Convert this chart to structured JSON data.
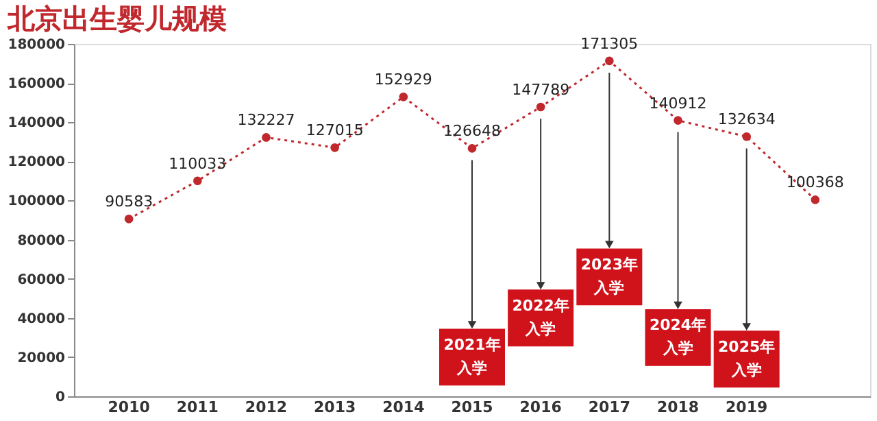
{
  "chart_data": {
    "type": "line",
    "title": "北京出生婴儿规模",
    "categories": [
      "2010",
      "2011",
      "2012",
      "2013",
      "2014",
      "2015",
      "2016",
      "2017",
      "2018",
      "2019",
      null
    ],
    "series": [
      {
        "color": "#c0282d",
        "values": [
          90583,
          110033,
          132227,
          127015,
          152929,
          126648,
          147789,
          171305,
          140912,
          132634,
          100368
        ]
      }
    ],
    "data_labels": true,
    "marker": "circle",
    "line_style": "dotted",
    "grid": false,
    "ylim": [
      0,
      180000
    ],
    "yticks": [
      0,
      20000,
      40000,
      60000,
      80000,
      100000,
      120000,
      140000,
      160000,
      180000
    ],
    "annotations": [
      "2021年",
      "入学",
      "2022年",
      "入学",
      "2023年",
      "入学",
      "2024年",
      "入学",
      "2025年",
      "入学"
    ]
  }
}
